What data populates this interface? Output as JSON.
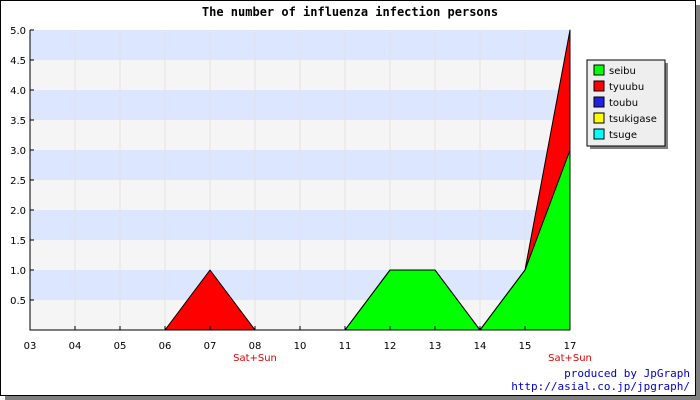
{
  "chart_data": {
    "type": "area",
    "stacked": true,
    "title": "The number of influenza infection persons",
    "x": [
      "03",
      "04",
      "05",
      "06",
      "07",
      "08",
      "10",
      "11",
      "12",
      "13",
      "14",
      "15",
      "17"
    ],
    "weekend_labels": [
      {
        "after": "07",
        "label": "Sat+Sun"
      },
      {
        "after": "15",
        "label": "Sat+Sun"
      }
    ],
    "series": [
      {
        "name": "seibu",
        "color": "#00ff00",
        "values": [
          0,
          0,
          0,
          0,
          0,
          0,
          0,
          0,
          1,
          1,
          0,
          1,
          3
        ]
      },
      {
        "name": "tyuubu",
        "color": "#ff0000",
        "values": [
          0,
          0,
          0,
          0,
          1,
          0,
          0,
          0,
          0,
          0,
          0,
          0,
          2
        ]
      },
      {
        "name": "toubu",
        "color": "#2020e0",
        "values": [
          0,
          0,
          0,
          0,
          0,
          0,
          0,
          0,
          0,
          0,
          0,
          0,
          0
        ]
      },
      {
        "name": "tsukigase",
        "color": "#ffff00",
        "values": [
          0,
          0,
          0,
          0,
          0,
          0,
          0,
          0,
          0,
          0,
          0,
          0,
          0
        ]
      },
      {
        "name": "tsuge",
        "color": "#00ffff",
        "values": [
          0,
          0,
          0,
          0,
          0,
          0,
          0,
          0,
          0,
          0,
          0,
          0,
          0
        ]
      }
    ],
    "yticks": [
      "0.5",
      "1.0",
      "1.5",
      "2.0",
      "2.5",
      "3.0",
      "3.5",
      "4.0",
      "4.5",
      "5.0"
    ],
    "ylim": [
      0,
      5
    ],
    "grid": true,
    "band_colors": [
      "#f5f5f5",
      "#dde6ff"
    ],
    "legend_position": "right"
  },
  "footer": {
    "credit_line1": "produced by JpGraph",
    "credit_line2": "http://asial.co.jp/jpgraph/"
  }
}
